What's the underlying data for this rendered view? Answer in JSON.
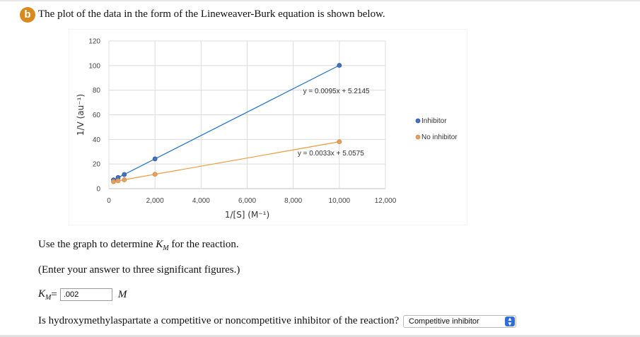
{
  "badge": "b",
  "intro": "The plot of the data in the form of the Lineweaver-Burk equation is shown below.",
  "chart_data": {
    "type": "scatter",
    "x_label": "1/[S] (M⁻¹)",
    "y_label": "1/V (au⁻¹)",
    "x_range": [
      0,
      12000
    ],
    "y_range": [
      0,
      120
    ],
    "x_ticks": [
      "0",
      "2,000",
      "4,000",
      "6,000",
      "8,000",
      "10,000",
      "12,000"
    ],
    "y_ticks": [
      "0",
      "20",
      "40",
      "60",
      "80",
      "100",
      "120"
    ],
    "grid": true,
    "legend_position": "right",
    "series": [
      {
        "name": "Inhibitor",
        "color": "#4472c4",
        "trendline_color": "#1f6fc8",
        "equation": "y = 0.0095x + 5.2145",
        "points": [
          [
            200,
            7.1
          ],
          [
            400,
            9.0
          ],
          [
            667,
            11.5
          ],
          [
            2000,
            24.2
          ],
          [
            10000,
            100.2
          ]
        ]
      },
      {
        "name": "No inhibitor",
        "color": "#e8a15c",
        "trendline_color": "#ec9b3a",
        "equation": "y = 0.0033x + 5.0575",
        "points": [
          [
            200,
            5.7
          ],
          [
            400,
            6.4
          ],
          [
            667,
            7.2
          ],
          [
            2000,
            11.7
          ],
          [
            10000,
            38.1
          ]
        ]
      }
    ]
  },
  "question1": {
    "before": "Use the graph to determine ",
    "km_symbol": "K",
    "km_sub": "M",
    "after": " for the reaction."
  },
  "question2": "(Enter your answer to three significant figures.)",
  "answer": {
    "label": "K",
    "label_sub": "M",
    "equals": " =",
    "value": ".002",
    "unit": "M"
  },
  "question3": "Is hydroxymethylaspartate a competitive or noncompetitive inhibitor of the reaction?",
  "select": {
    "value": "Competitive inhibitor"
  }
}
